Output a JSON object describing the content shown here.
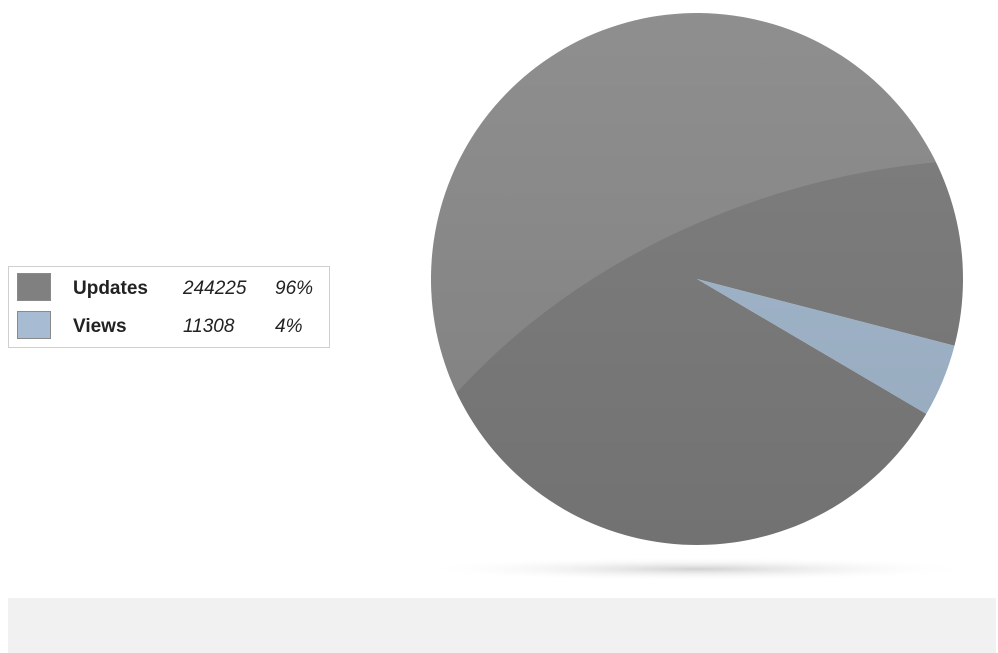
{
  "chart_data": {
    "type": "pie",
    "title": "",
    "slices": [
      {
        "label": "Updates",
        "value": 244225,
        "percent": "96%",
        "color": "#808080"
      },
      {
        "label": "Views",
        "value": 11308,
        "percent": "4%",
        "color": "#a7bcd2"
      }
    ],
    "legend_position": "left"
  },
  "colors": {
    "footer_band": "#f1f1f1",
    "legend_border": "#cfcfcf"
  }
}
